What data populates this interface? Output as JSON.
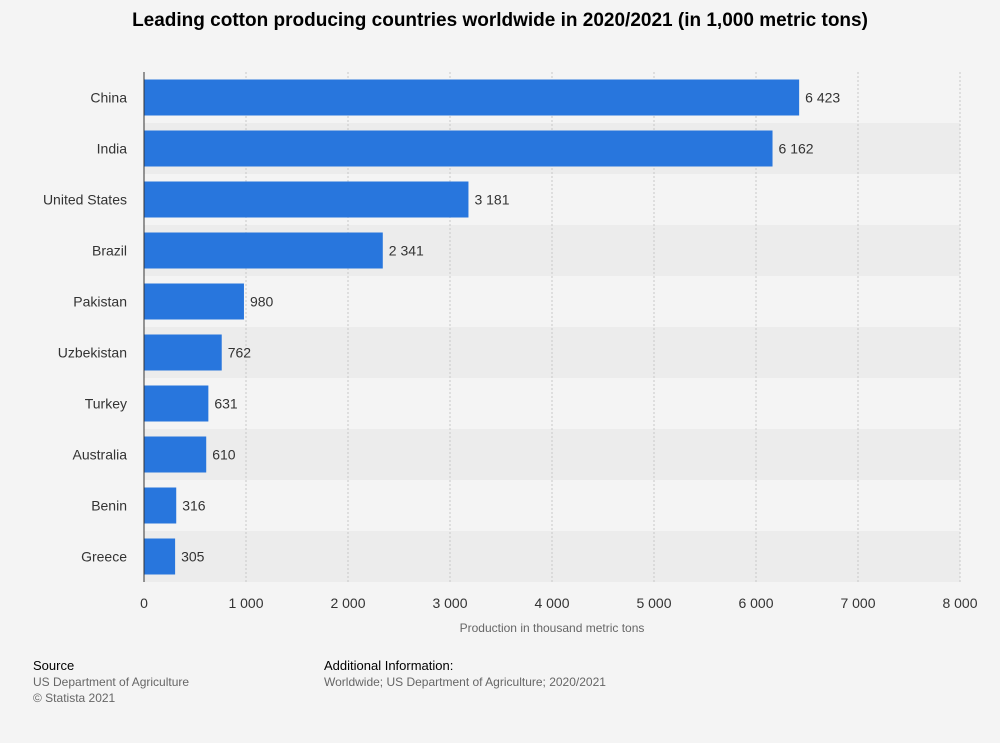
{
  "chart_data": {
    "type": "bar",
    "orientation": "horizontal",
    "title": "Leading cotton producing countries worldwide in 2020/2021 (in 1,000 metric tons)",
    "categories": [
      "China",
      "India",
      "United States",
      "Brazil",
      "Pakistan",
      "Uzbekistan",
      "Turkey",
      "Australia",
      "Benin",
      "Greece"
    ],
    "values": [
      6423,
      6162,
      3181,
      2341,
      980,
      762,
      631,
      610,
      316,
      305
    ],
    "value_labels": [
      "6 423",
      "6 162",
      "3 181",
      "2 341",
      "980",
      "762",
      "631",
      "610",
      "316",
      "305"
    ],
    "xlabel": "Production in thousand metric tons",
    "ylabel": "",
    "xlim": [
      0,
      8000
    ],
    "ticks": [
      0,
      1000,
      2000,
      3000,
      4000,
      5000,
      6000,
      7000,
      8000
    ],
    "tick_labels": [
      "0",
      "1 000",
      "2 000",
      "3 000",
      "4 000",
      "5 000",
      "6 000",
      "7 000",
      "8 000"
    ],
    "grid": "vertical dashed",
    "bar_color": "#2876dd",
    "band_color": "#ececec"
  },
  "footer": {
    "source_head": "Source",
    "source_line1": "US Department of Agriculture",
    "source_line2": "© Statista 2021",
    "info_head": "Additional Information:",
    "info_line1": "Worldwide; US Department of Agriculture; 2020/2021"
  }
}
